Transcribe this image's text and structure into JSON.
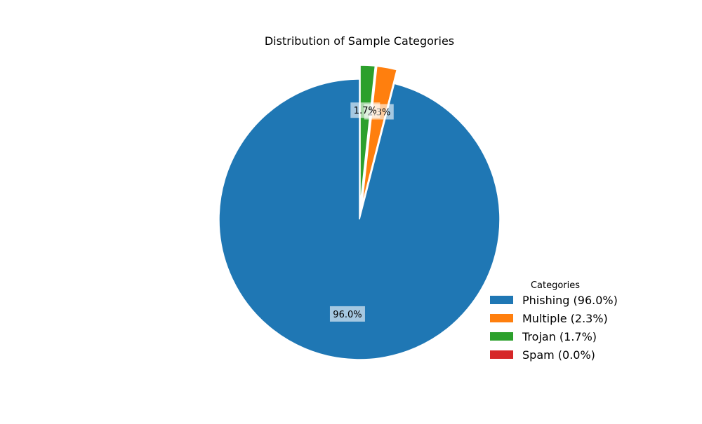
{
  "chart_data": {
    "type": "pie",
    "title": "Distribution of Sample Categories",
    "start_angle_deg": 90,
    "direction": "counterclockwise",
    "slices": [
      {
        "label": "Phishing",
        "value": 96.0,
        "pct_label": "96.0%",
        "legend_label": "Phishing (96.0%)",
        "color": "#1f77b4",
        "exploded": false
      },
      {
        "label": "Multiple",
        "value": 2.3,
        "pct_label": "2.3%",
        "legend_label": "Multiple (2.3%)",
        "color": "#ff7f0e",
        "exploded": true
      },
      {
        "label": "Trojan",
        "value": 1.7,
        "pct_label": "1.7%",
        "legend_label": "Trojan (1.7%)",
        "color": "#2ca02c",
        "exploded": true
      },
      {
        "label": "Spam",
        "value": 0.0,
        "pct_label": "0.0%",
        "legend_label": "Spam (0.0%)",
        "color": "#d62728",
        "exploded": true
      }
    ],
    "legend": {
      "title": "Categories",
      "placement": "lower-right"
    }
  }
}
